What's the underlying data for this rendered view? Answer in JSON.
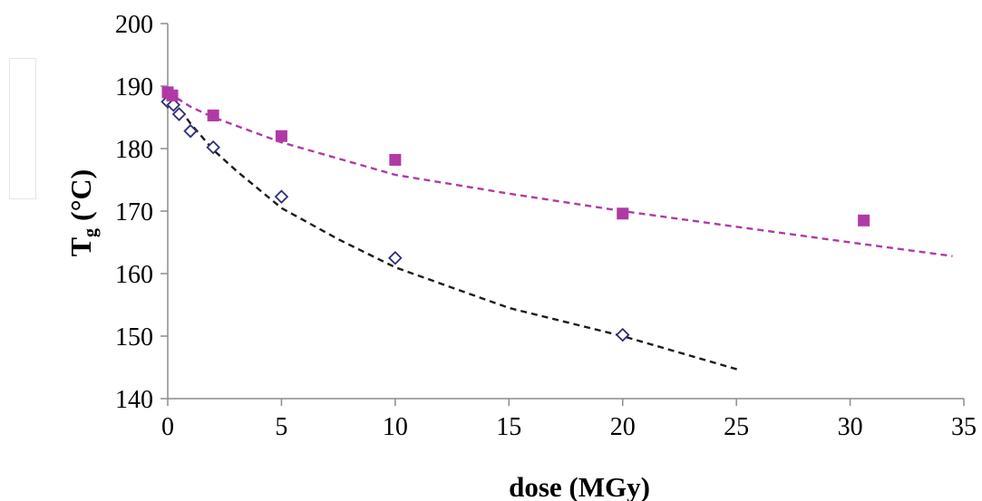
{
  "chart_data": {
    "type": "scatter",
    "title": "",
    "xlabel": "dose (MGy)",
    "ylabel": {
      "main": "T",
      "sub": "g",
      "rest": " (°C)"
    },
    "xlim": [
      0,
      35
    ],
    "ylim": [
      140,
      200
    ],
    "xticks": [
      0,
      5,
      10,
      15,
      20,
      25,
      30,
      35
    ],
    "yticks": [
      140,
      150,
      160,
      170,
      180,
      190,
      200
    ],
    "grid": false,
    "legend": "none",
    "series": [
      {
        "marker": "open-diamond",
        "color": "#2e2e7a",
        "points": [
          [
            0,
            187.5
          ],
          [
            0.25,
            187
          ],
          [
            0.5,
            185.5
          ],
          [
            1,
            182.8
          ],
          [
            2,
            180.2
          ],
          [
            5,
            172.3
          ],
          [
            10,
            162.5
          ],
          [
            20,
            150.2
          ]
        ],
        "trend": {
          "style": "dashed",
          "color": "#1c1c1c",
          "x_range": [
            0,
            25.2
          ],
          "points": [
            [
              0,
              189
            ],
            [
              1,
              184
            ],
            [
              2,
              179.8
            ],
            [
              3,
              176.5
            ],
            [
              5,
              170.5
            ],
            [
              7.5,
              165.5
            ],
            [
              10,
              161
            ],
            [
              15,
              154.5
            ],
            [
              20,
              150
            ],
            [
              25.2,
              144.5
            ]
          ]
        }
      },
      {
        "marker": "filled-square",
        "color": "#b03aa5",
        "points": [
          [
            0,
            189
          ],
          [
            0.2,
            188.5
          ],
          [
            2,
            185.3
          ],
          [
            5,
            182
          ],
          [
            10,
            178.2
          ],
          [
            20,
            169.6
          ],
          [
            30.6,
            168.5
          ]
        ],
        "trend": {
          "style": "dashed",
          "color": "#b03aa5",
          "x_range": [
            0,
            34.5
          ],
          "points": [
            [
              0,
              189
            ],
            [
              1,
              186.7
            ],
            [
              2,
              185
            ],
            [
              5,
              181
            ],
            [
              7.5,
              178.4
            ],
            [
              10,
              175.8
            ],
            [
              15,
              172.8
            ],
            [
              20,
              170
            ],
            [
              25,
              167.5
            ],
            [
              30,
              165
            ],
            [
              34.5,
              162.8
            ]
          ]
        }
      }
    ]
  }
}
